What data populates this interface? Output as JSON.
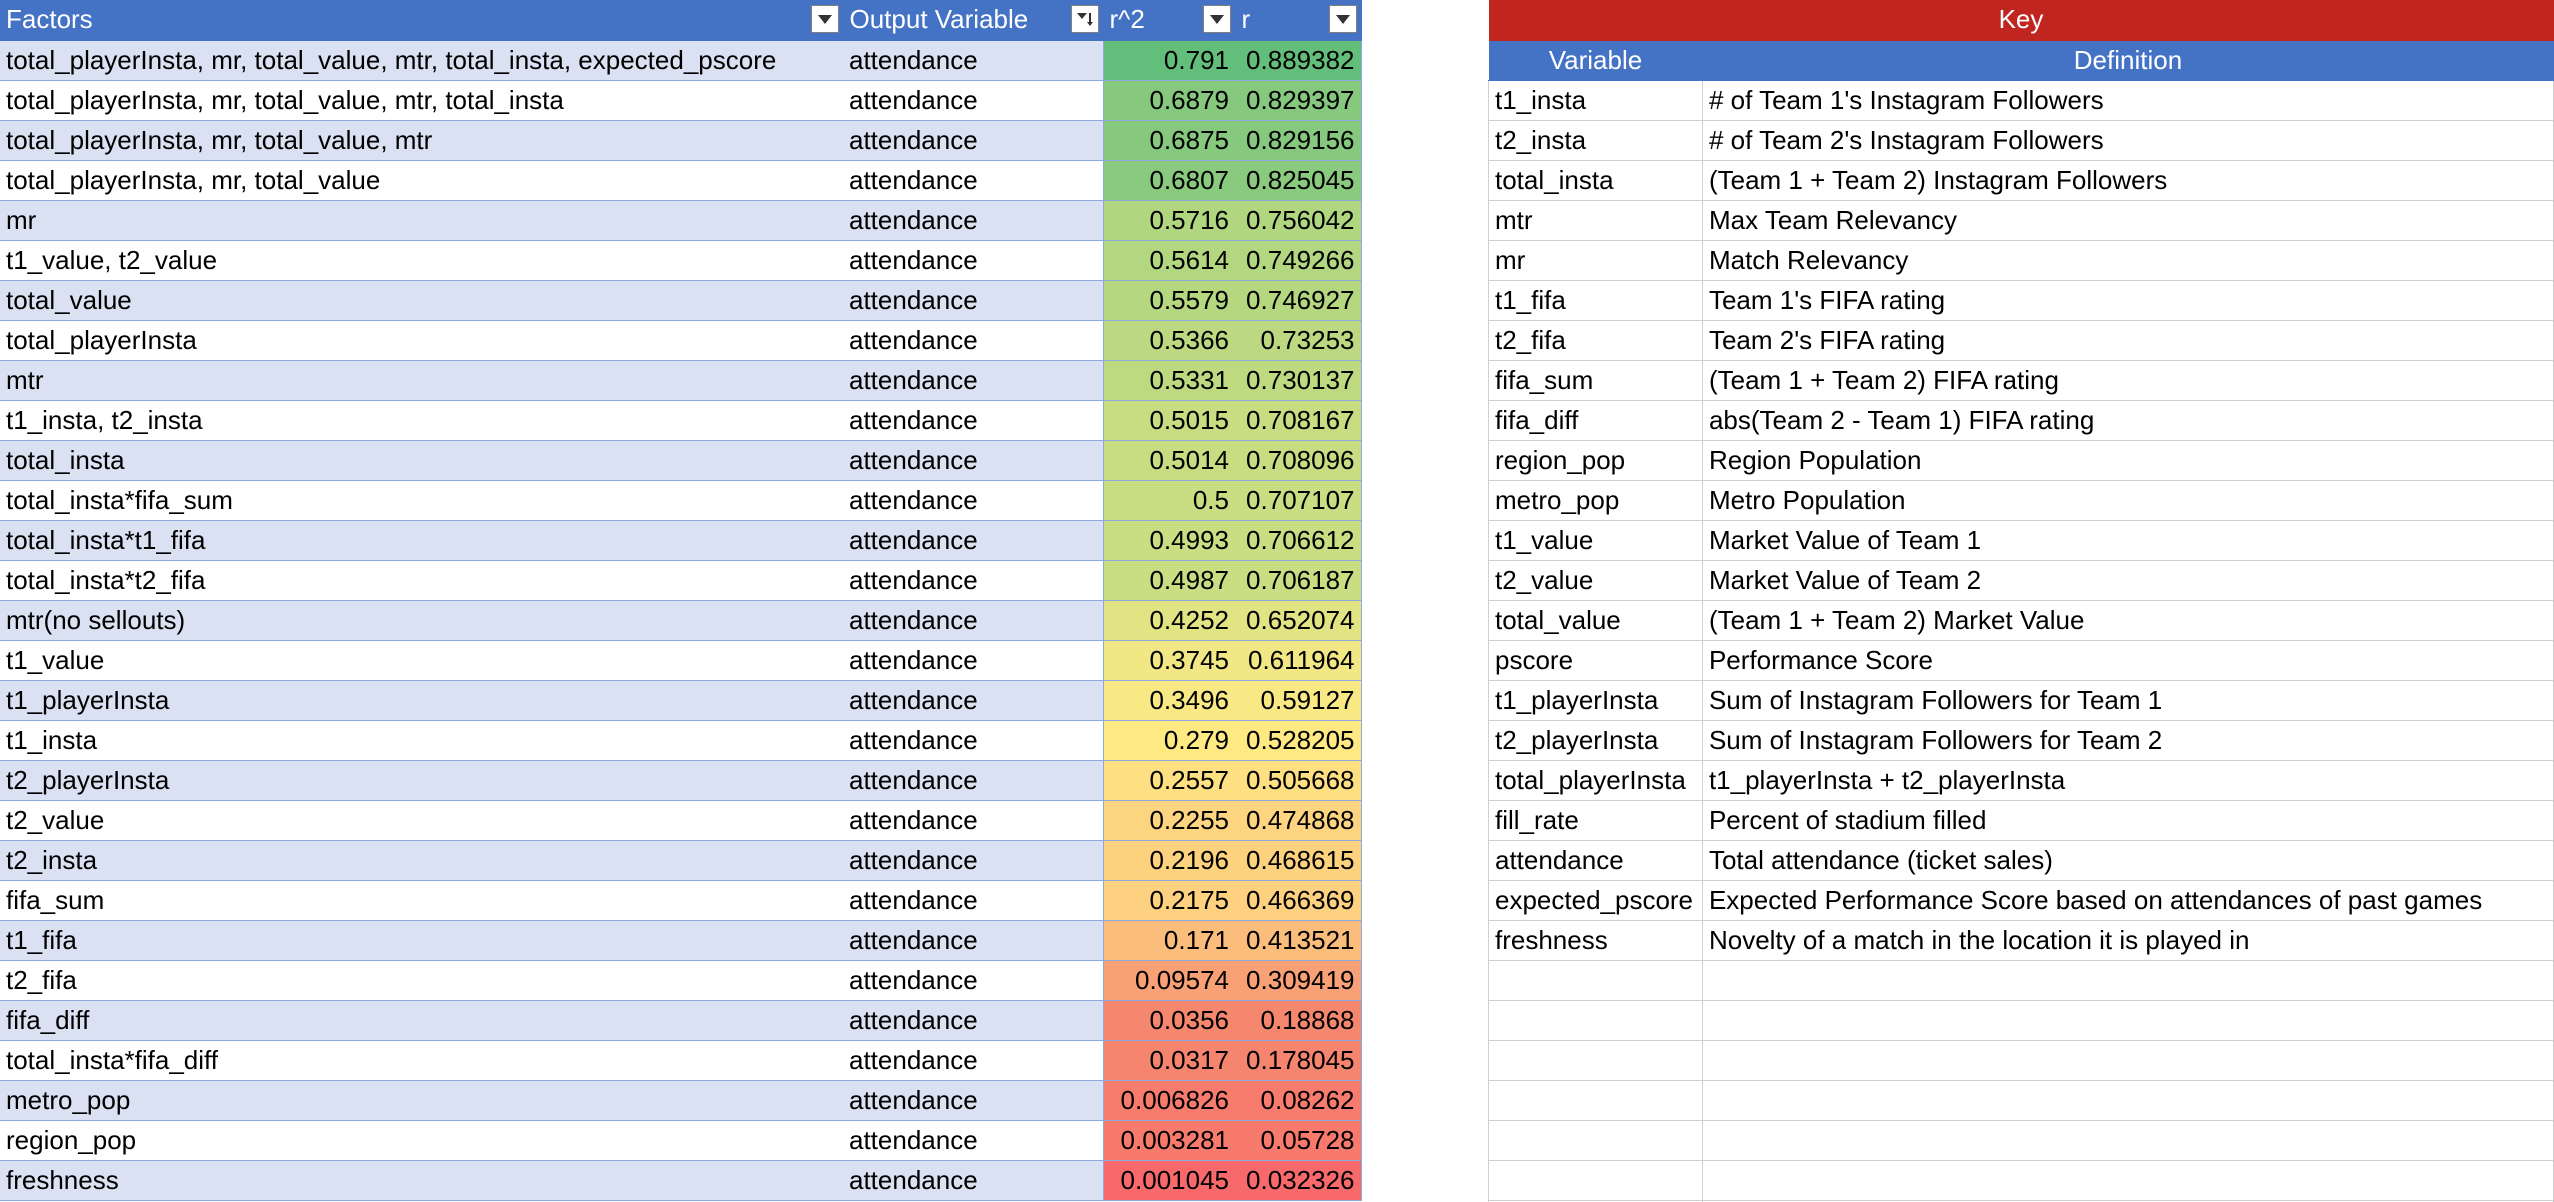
{
  "main_table": {
    "headers": [
      {
        "label": "Factors"
      },
      {
        "label": "Output Variable"
      },
      {
        "label": "r^2"
      },
      {
        "label": "r"
      }
    ],
    "rows": [
      {
        "factors": "total_playerInsta, mr, total_value, mtr, total_insta, expected_pscore",
        "output": "attendance",
        "r2": "0.791",
        "r": "0.889382",
        "color": "#63be7b"
      },
      {
        "factors": "total_playerInsta, mr, total_value, mtr, total_insta",
        "output": "attendance",
        "r2": "0.6879",
        "r": "0.829397",
        "color": "#86c97e"
      },
      {
        "factors": "total_playerInsta, mr, total_value, mtr",
        "output": "attendance",
        "r2": "0.6875",
        "r": "0.829156",
        "color": "#86c97e"
      },
      {
        "factors": "total_playerInsta, mr, total_value",
        "output": "attendance",
        "r2": "0.6807",
        "r": "0.825045",
        "color": "#89ca7e"
      },
      {
        "factors": "mr",
        "output": "attendance",
        "r2": "0.5716",
        "r": "0.756042",
        "color": "#b0d680"
      },
      {
        "factors": "t1_value, t2_value",
        "output": "attendance",
        "r2": "0.5614",
        "r": "0.749266",
        "color": "#b3d780"
      },
      {
        "factors": "total_value",
        "output": "attendance",
        "r2": "0.5579",
        "r": "0.746927",
        "color": "#b5d780"
      },
      {
        "factors": "total_playerInsta",
        "output": "attendance",
        "r2": "0.5366",
        "r": "0.73253",
        "color": "#bcd981"
      },
      {
        "factors": "mtr",
        "output": "attendance",
        "r2": "0.5331",
        "r": "0.730137",
        "color": "#bdda81"
      },
      {
        "factors": "t1_insta, t2_insta",
        "output": "attendance",
        "r2": "0.5015",
        "r": "0.708167",
        "color": "#c8dd82"
      },
      {
        "factors": "total_insta",
        "output": "attendance",
        "r2": "0.5014",
        "r": "0.708096",
        "color": "#c8dd82"
      },
      {
        "factors": "total_insta*fifa_sum",
        "output": "attendance",
        "r2": "0.5",
        "r": "0.707107",
        "color": "#c9de82"
      },
      {
        "factors": "total_insta*t1_fifa",
        "output": "attendance",
        "r2": "0.4993",
        "r": "0.706612",
        "color": "#c9de82"
      },
      {
        "factors": "total_insta*t2_fifa",
        "output": "attendance",
        "r2": "0.4987",
        "r": "0.706187",
        "color": "#c9de82"
      },
      {
        "factors": "mtr(no sellouts)",
        "output": "attendance",
        "r2": "0.4252",
        "r": "0.652074",
        "color": "#e2e383"
      },
      {
        "factors": "t1_value",
        "output": "attendance",
        "r2": "0.3745",
        "r": "0.611964",
        "color": "#f1e784"
      },
      {
        "factors": "t1_playerInsta",
        "output": "attendance",
        "r2": "0.3496",
        "r": "0.59127",
        "color": "#f8e984"
      },
      {
        "factors": "t1_insta",
        "output": "attendance",
        "r2": "0.279",
        "r": "0.528205",
        "color": "#fee983"
      },
      {
        "factors": "t2_playerInsta",
        "output": "attendance",
        "r2": "0.2557",
        "r": "0.505668",
        "color": "#fedf81"
      },
      {
        "factors": "t2_value",
        "output": "attendance",
        "r2": "0.2255",
        "r": "0.474868",
        "color": "#fdd47f"
      },
      {
        "factors": "t2_insta",
        "output": "attendance",
        "r2": "0.2196",
        "r": "0.468615",
        "color": "#fdd27f"
      },
      {
        "factors": "fifa_sum",
        "output": "attendance",
        "r2": "0.2175",
        "r": "0.466369",
        "color": "#fdd17f"
      },
      {
        "factors": "t1_fifa",
        "output": "attendance",
        "r2": "0.171",
        "r": "0.413521",
        "color": "#fbbd7b"
      },
      {
        "factors": "t2_fifa",
        "output": "attendance",
        "r2": "0.09574",
        "r": "0.309419",
        "color": "#f8a076"
      },
      {
        "factors": "fifa_diff",
        "output": "attendance",
        "r2": "0.0356",
        "r": "0.18868",
        "color": "#f5876f"
      },
      {
        "factors": "total_insta*fifa_diff",
        "output": "attendance",
        "r2": "0.0317",
        "r": "0.178045",
        "color": "#f5856f"
      },
      {
        "factors": "metro_pop",
        "output": "attendance",
        "r2": "0.006826",
        "r": "0.08262",
        "color": "#f87c6d"
      },
      {
        "factors": "region_pop",
        "output": "attendance",
        "r2": "0.003281",
        "r": "0.05728",
        "color": "#f87a6c"
      },
      {
        "factors": "freshness",
        "output": "attendance",
        "r2": "0.001045",
        "r": "0.032326",
        "color": "#f8696b"
      }
    ]
  },
  "key_table": {
    "title": "Key",
    "headers": [
      {
        "label": "Variable"
      },
      {
        "label": "Definition"
      }
    ],
    "rows": [
      {
        "variable": "t1_insta",
        "definition": "# of Team 1's Instagram Followers"
      },
      {
        "variable": "t2_insta",
        "definition": "# of Team 2's Instagram Followers"
      },
      {
        "variable": "total_insta",
        "definition": "(Team 1 + Team 2) Instagram Followers"
      },
      {
        "variable": "mtr",
        "definition": "Max Team Relevancy"
      },
      {
        "variable": "mr",
        "definition": "Match Relevancy"
      },
      {
        "variable": "t1_fifa",
        "definition": "Team 1's FIFA rating"
      },
      {
        "variable": "t2_fifa",
        "definition": "Team 2's FIFA rating"
      },
      {
        "variable": "fifa_sum",
        "definition": "(Team 1 + Team 2) FIFA rating"
      },
      {
        "variable": "fifa_diff",
        "definition": "abs(Team 2 - Team 1) FIFA rating"
      },
      {
        "variable": "region_pop",
        "definition": "Region Population"
      },
      {
        "variable": "metro_pop",
        "definition": "Metro Population"
      },
      {
        "variable": "t1_value",
        "definition": "Market Value of Team 1"
      },
      {
        "variable": "t2_value",
        "definition": "Market Value of Team 2"
      },
      {
        "variable": "total_value",
        "definition": "(Team 1 + Team 2) Market Value"
      },
      {
        "variable": "pscore",
        "definition": "Performance Score"
      },
      {
        "variable": "t1_playerInsta",
        "definition": "Sum of Instagram Followers for Team 1"
      },
      {
        "variable": "t2_playerInsta",
        "definition": "Sum of Instagram Followers for Team 2"
      },
      {
        "variable": "total_playerInsta",
        "definition": "t1_playerInsta + t2_playerInsta"
      },
      {
        "variable": "fill_rate",
        "definition": "Percent of stadium filled"
      },
      {
        "variable": "attendance",
        "definition": "Total attendance (ticket sales)"
      },
      {
        "variable": "expected_pscore",
        "definition": "Expected Performance Score based on attendances of past games"
      },
      {
        "variable": "freshness",
        "definition": "Novelty of a match in the location it is played in"
      },
      {
        "variable": "",
        "definition": ""
      },
      {
        "variable": "",
        "definition": ""
      },
      {
        "variable": "",
        "definition": ""
      },
      {
        "variable": "",
        "definition": ""
      },
      {
        "variable": "",
        "definition": ""
      },
      {
        "variable": "",
        "definition": ""
      },
      {
        "variable": "",
        "definition": ""
      }
    ]
  },
  "icons": {
    "filter_dropdown": "chevron-down-icon",
    "filter_sorted": "sort-filter-icon"
  }
}
